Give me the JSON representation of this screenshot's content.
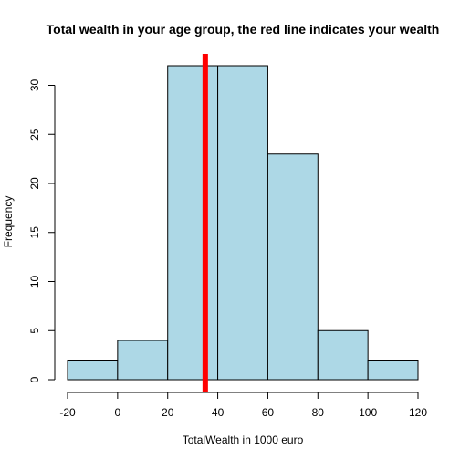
{
  "chart_data": {
    "type": "histogram",
    "title": "Total wealth in your age group, the red line indicates your wealth",
    "xlabel": "TotalWealth in 1000 euro",
    "ylabel": "Frequency",
    "bins": [
      {
        "start": -20,
        "end": 0,
        "count": 2
      },
      {
        "start": 0,
        "end": 20,
        "count": 4
      },
      {
        "start": 20,
        "end": 40,
        "count": 32
      },
      {
        "start": 40,
        "end": 60,
        "count": 32
      },
      {
        "start": 60,
        "end": 80,
        "count": 23
      },
      {
        "start": 80,
        "end": 100,
        "count": 5
      },
      {
        "start": 100,
        "end": 120,
        "count": 2
      }
    ],
    "xlim": [
      -20,
      120
    ],
    "ylim": [
      0,
      32
    ],
    "x_ticks": [
      -20,
      0,
      20,
      40,
      60,
      80,
      100,
      120
    ],
    "y_ticks": [
      0,
      5,
      10,
      15,
      20,
      25,
      30
    ],
    "reference_line": {
      "x": 35,
      "color": "#ff0000"
    },
    "bar_color": "#add8e6",
    "bar_edge_color": "#000000",
    "grid": false,
    "legend": "none"
  }
}
